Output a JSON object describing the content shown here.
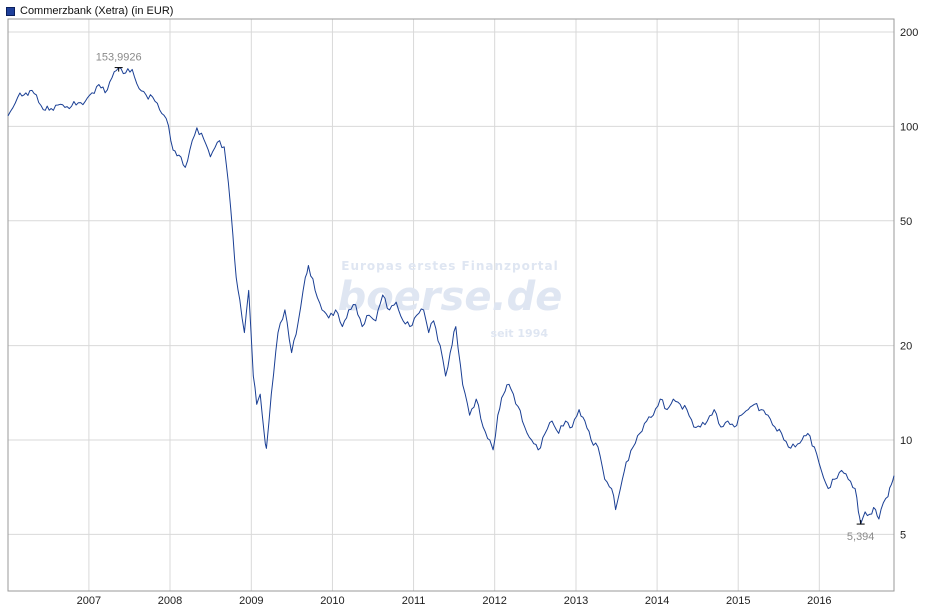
{
  "legend": {
    "label": "Commerzbank (Xetra) (in EUR)",
    "color": "#1e3f9a"
  },
  "watermark": {
    "top": "Europas erstes Finanzportal",
    "brand": "boerse.de",
    "bottom": "seit 1994"
  },
  "colors": {
    "line": "#1a3f94",
    "grid": "#d9d9d9",
    "frame": "#9a9a9a"
  },
  "chart_data": {
    "type": "line",
    "title": "",
    "xlabel": "",
    "ylabel": "",
    "y_scale": "log",
    "ylim": [
      3.3,
      220
    ],
    "xlim": [
      "2006-01-02",
      "2016-12-02"
    ],
    "y_ticks": [
      {
        "value": 200,
        "label": "200"
      },
      {
        "value": 100,
        "label": "100"
      },
      {
        "value": 50,
        "label": "50"
      },
      {
        "value": 20,
        "label": "20"
      },
      {
        "value": 10,
        "label": "10"
      },
      {
        "value": 5,
        "label": "5"
      }
    ],
    "x_ticks": [
      "2007",
      "2008",
      "2009",
      "2010",
      "2011",
      "2012",
      "2013",
      "2014",
      "2015",
      "2016"
    ],
    "grid": true,
    "legend_position": "top-left",
    "annotations": [
      {
        "label": "153,9926",
        "x": "2007-05-15",
        "y": 153.9926,
        "kind": "max"
      },
      {
        "label": "5,394",
        "x": "2016-07-05",
        "y": 5.394,
        "kind": "min"
      }
    ],
    "series": [
      {
        "name": "Commerzbank (Xetra) (in EUR)",
        "points": [
          [
            "2006-01-02",
            108
          ],
          [
            "2006-02-15",
            124
          ],
          [
            "2006-03-15",
            126
          ],
          [
            "2006-04-10",
            130
          ],
          [
            "2006-05-10",
            126
          ],
          [
            "2006-06-10",
            113
          ],
          [
            "2006-07-15",
            114
          ],
          [
            "2006-08-15",
            117
          ],
          [
            "2006-09-15",
            115
          ],
          [
            "2006-10-15",
            116
          ],
          [
            "2006-11-15",
            119
          ],
          [
            "2006-12-15",
            120
          ],
          [
            "2007-01-15",
            128
          ],
          [
            "2007-02-15",
            136
          ],
          [
            "2007-03-15",
            128
          ],
          [
            "2007-04-15",
            143
          ],
          [
            "2007-05-15",
            153.99
          ],
          [
            "2007-06-15",
            148
          ],
          [
            "2007-07-15",
            152
          ],
          [
            "2007-08-15",
            132
          ],
          [
            "2007-09-15",
            126
          ],
          [
            "2007-10-15",
            124
          ],
          [
            "2007-11-15",
            113
          ],
          [
            "2007-12-15",
            106
          ],
          [
            "2008-01-15",
            84
          ],
          [
            "2008-02-10",
            81
          ],
          [
            "2008-03-10",
            74
          ],
          [
            "2008-04-10",
            90
          ],
          [
            "2008-05-01",
            99
          ],
          [
            "2008-06-01",
            91
          ],
          [
            "2008-07-01",
            80
          ],
          [
            "2008-08-01",
            89
          ],
          [
            "2008-09-01",
            86
          ],
          [
            "2008-09-20",
            66
          ],
          [
            "2008-10-10",
            45
          ],
          [
            "2008-10-25",
            33
          ],
          [
            "2008-11-10",
            28
          ],
          [
            "2008-12-01",
            22
          ],
          [
            "2008-12-20",
            30
          ],
          [
            "2009-01-10",
            16
          ],
          [
            "2009-01-25",
            13
          ],
          [
            "2009-02-10",
            14
          ],
          [
            "2009-02-28",
            10.5
          ],
          [
            "2009-03-10",
            9.4
          ],
          [
            "2009-04-01",
            14
          ],
          [
            "2009-05-01",
            22
          ],
          [
            "2009-06-01",
            26
          ],
          [
            "2009-07-01",
            19
          ],
          [
            "2009-08-01",
            24
          ],
          [
            "2009-09-01",
            33
          ],
          [
            "2009-09-15",
            36
          ],
          [
            "2009-10-15",
            30
          ],
          [
            "2009-11-15",
            26
          ],
          [
            "2009-12-15",
            24.5
          ],
          [
            "2010-01-15",
            26
          ],
          [
            "2010-02-15",
            23
          ],
          [
            "2010-03-15",
            26
          ],
          [
            "2010-04-15",
            27
          ],
          [
            "2010-05-15",
            23
          ],
          [
            "2010-06-15",
            25
          ],
          [
            "2010-07-15",
            24
          ],
          [
            "2010-08-15",
            29
          ],
          [
            "2010-09-15",
            26
          ],
          [
            "2010-10-15",
            27.5
          ],
          [
            "2010-11-15",
            24
          ],
          [
            "2010-12-15",
            23
          ],
          [
            "2011-01-15",
            25
          ],
          [
            "2011-02-15",
            26
          ],
          [
            "2011-03-10",
            22
          ],
          [
            "2011-04-01",
            24
          ],
          [
            "2011-05-01",
            20
          ],
          [
            "2011-05-25",
            16
          ],
          [
            "2011-06-15",
            19
          ],
          [
            "2011-07-10",
            23
          ],
          [
            "2011-08-10",
            15
          ],
          [
            "2011-09-10",
            12
          ],
          [
            "2011-10-10",
            13.5
          ],
          [
            "2011-11-10",
            11
          ],
          [
            "2011-12-10",
            10
          ],
          [
            "2011-12-25",
            9.3
          ],
          [
            "2012-01-15",
            12
          ],
          [
            "2012-02-10",
            14
          ],
          [
            "2012-02-25",
            15
          ],
          [
            "2012-03-15",
            14.5
          ],
          [
            "2012-04-15",
            12.8
          ],
          [
            "2012-05-15",
            11
          ],
          [
            "2012-06-15",
            10
          ],
          [
            "2012-07-15",
            9.3
          ],
          [
            "2012-08-15",
            10.5
          ],
          [
            "2012-09-15",
            11.5
          ],
          [
            "2012-10-15",
            10.5
          ],
          [
            "2012-11-15",
            11.5
          ],
          [
            "2012-12-15",
            11
          ],
          [
            "2013-01-15",
            12.5
          ],
          [
            "2013-02-10",
            11.5
          ],
          [
            "2013-03-10",
            10
          ],
          [
            "2013-04-10",
            9.5
          ],
          [
            "2013-05-10",
            7.5
          ],
          [
            "2013-06-10",
            7.0
          ],
          [
            "2013-06-28",
            6.0
          ],
          [
            "2013-07-20",
            7.0
          ],
          [
            "2013-08-15",
            8.5
          ],
          [
            "2013-09-15",
            9.5
          ],
          [
            "2013-10-15",
            10.5
          ],
          [
            "2013-11-15",
            11.5
          ],
          [
            "2013-12-15",
            12
          ],
          [
            "2014-01-15",
            13.5
          ],
          [
            "2014-02-15",
            12.5
          ],
          [
            "2014-03-15",
            13.5
          ],
          [
            "2014-04-15",
            13
          ],
          [
            "2014-05-15",
            12.5
          ],
          [
            "2014-06-15",
            11
          ],
          [
            "2014-07-15",
            11
          ],
          [
            "2014-08-15",
            11.5
          ],
          [
            "2014-09-15",
            12.5
          ],
          [
            "2014-10-15",
            11
          ],
          [
            "2014-11-15",
            11.5
          ],
          [
            "2014-12-15",
            11
          ],
          [
            "2015-01-15",
            12
          ],
          [
            "2015-02-15",
            12.5
          ],
          [
            "2015-03-15",
            13
          ],
          [
            "2015-04-15",
            12.5
          ],
          [
            "2015-05-15",
            12
          ],
          [
            "2015-06-15",
            11
          ],
          [
            "2015-07-15",
            10.5
          ],
          [
            "2015-08-15",
            9.5
          ],
          [
            "2015-09-15",
            9.5
          ],
          [
            "2015-10-15",
            10
          ],
          [
            "2015-11-10",
            10.5
          ],
          [
            "2015-12-10",
            9.5
          ],
          [
            "2016-01-10",
            8
          ],
          [
            "2016-02-10",
            7.0
          ],
          [
            "2016-03-10",
            7.5
          ],
          [
            "2016-04-10",
            8
          ],
          [
            "2016-05-10",
            7.5
          ],
          [
            "2016-06-10",
            7
          ],
          [
            "2016-06-25",
            5.9
          ],
          [
            "2016-07-05",
            5.394
          ],
          [
            "2016-07-25",
            5.9
          ],
          [
            "2016-08-15",
            5.8
          ],
          [
            "2016-09-10",
            6.0
          ],
          [
            "2016-09-25",
            5.6
          ],
          [
            "2016-10-15",
            6.3
          ],
          [
            "2016-11-05",
            6.6
          ],
          [
            "2016-11-20",
            7.2
          ],
          [
            "2016-12-02",
            7.7
          ]
        ]
      }
    ]
  }
}
